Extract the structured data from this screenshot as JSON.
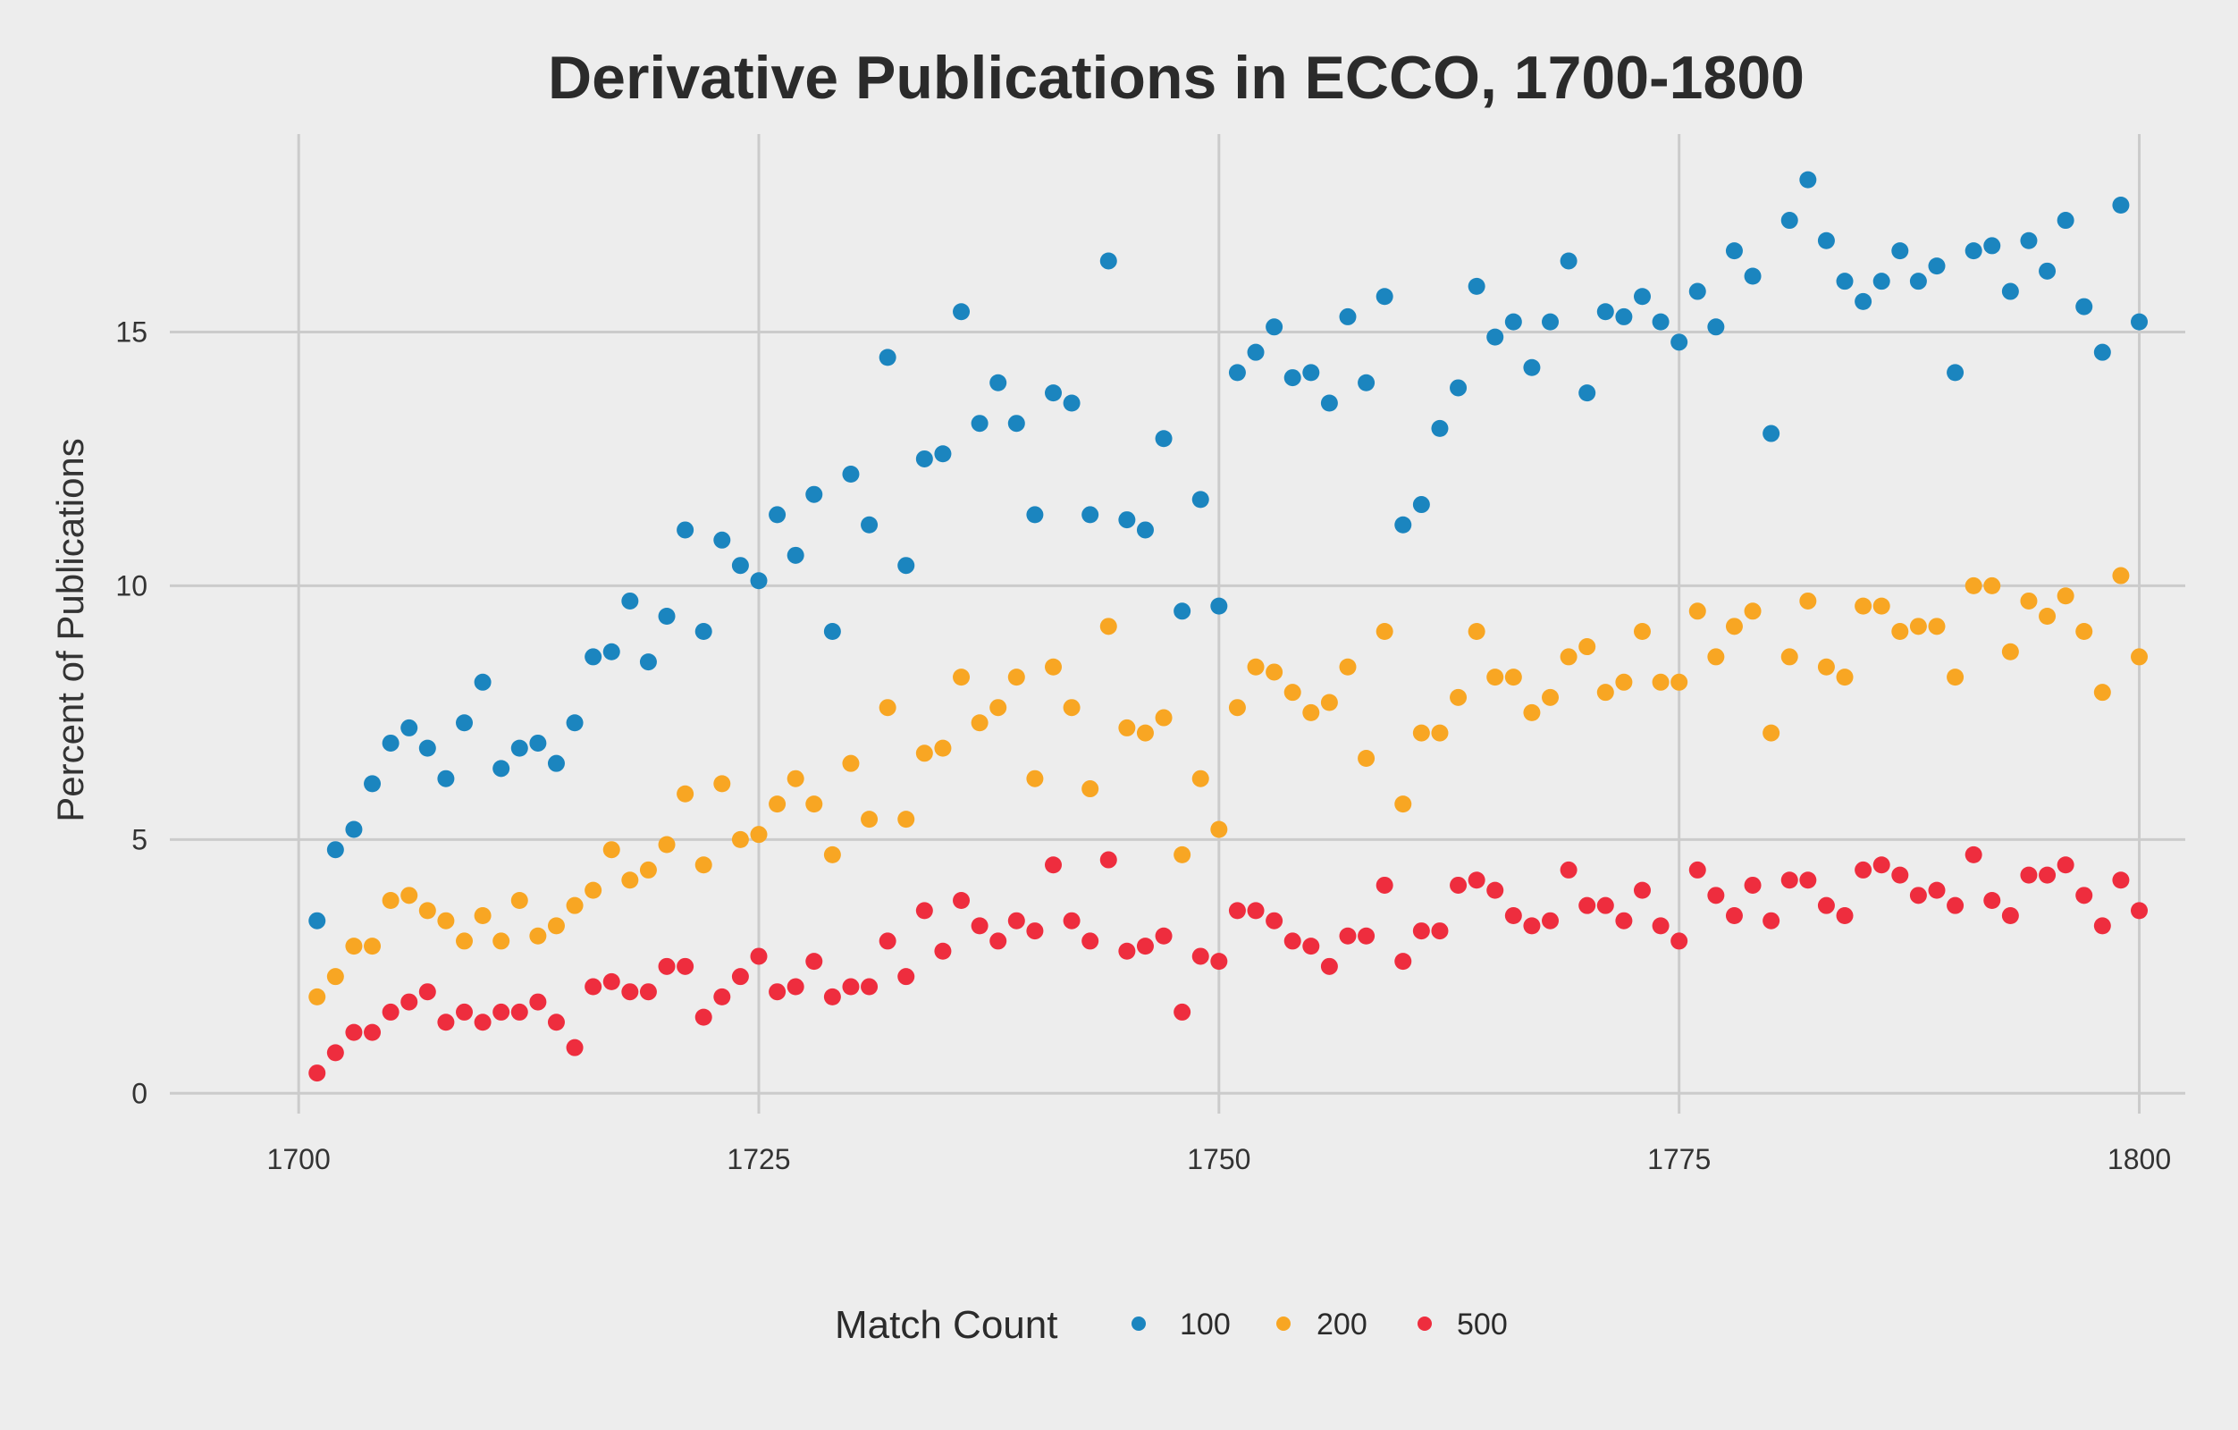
{
  "chart_data": {
    "type": "scatter",
    "title": "Derivative Publications in ECCO, 1700-1800",
    "xlabel": "",
    "ylabel": "Percent of Publications",
    "xlim": [
      1693,
      1802.5
    ],
    "ylim": [
      -0.4,
      18.9
    ],
    "x_ticks": [
      1700,
      1725,
      1750,
      1775,
      1800
    ],
    "y_ticks": [
      0,
      5,
      10,
      15
    ],
    "grid": true,
    "legend": {
      "title": "Match Count",
      "position": "bottom"
    },
    "colors": {
      "100": "#1b85bf",
      "200": "#f8a623",
      "500": "#ee2d3e",
      "background": "#ededed",
      "grid": "#cbcbcb"
    },
    "x": [
      1701,
      1702,
      1703,
      1704,
      1705,
      1706,
      1707,
      1708,
      1709,
      1710,
      1711,
      1712,
      1713,
      1714,
      1715,
      1716,
      1717,
      1718,
      1719,
      1720,
      1721,
      1722,
      1723,
      1724,
      1725,
      1726,
      1727,
      1728,
      1729,
      1730,
      1731,
      1732,
      1733,
      1734,
      1735,
      1736,
      1737,
      1738,
      1739,
      1740,
      1741,
      1742,
      1743,
      1744,
      1745,
      1746,
      1747,
      1748,
      1749,
      1750,
      1751,
      1752,
      1753,
      1754,
      1755,
      1756,
      1757,
      1758,
      1759,
      1760,
      1761,
      1762,
      1763,
      1764,
      1765,
      1766,
      1767,
      1768,
      1769,
      1770,
      1771,
      1772,
      1773,
      1774,
      1775,
      1776,
      1777,
      1778,
      1779,
      1780,
      1781,
      1782,
      1783,
      1784,
      1785,
      1786,
      1787,
      1788,
      1789,
      1790,
      1791,
      1792,
      1793,
      1794,
      1795,
      1796,
      1797,
      1798,
      1799,
      1800
    ],
    "series": [
      {
        "name": "100",
        "color": "#1b85bf",
        "values": [
          3.4,
          4.8,
          5.2,
          6.1,
          6.9,
          7.2,
          6.8,
          6.2,
          7.3,
          8.1,
          6.4,
          6.8,
          6.9,
          6.5,
          7.3,
          8.6,
          8.7,
          9.7,
          8.5,
          9.4,
          11.1,
          9.1,
          10.9,
          10.4,
          10.1,
          11.4,
          10.6,
          11.8,
          9.1,
          12.2,
          11.2,
          14.5,
          10.4,
          12.5,
          12.6,
          15.4,
          13.2,
          14.0,
          13.2,
          11.4,
          13.8,
          13.6,
          11.4,
          16.4,
          11.3,
          11.1,
          12.9,
          9.5,
          11.7,
          9.6,
          14.2,
          14.6,
          15.1,
          14.1,
          14.2,
          13.6,
          15.3,
          14.0,
          15.7,
          11.2,
          11.6,
          13.1,
          13.9,
          15.9,
          14.9,
          15.2,
          14.3,
          15.2,
          16.4,
          13.8,
          15.4,
          15.3,
          15.7,
          15.2,
          14.8,
          15.8,
          15.1,
          16.6,
          16.1,
          13.0,
          17.2,
          18.0,
          16.8,
          16.0,
          15.6,
          16.0,
          16.6,
          16.0,
          16.3,
          14.2,
          16.6,
          16.7,
          15.8,
          16.8,
          16.2,
          17.2,
          15.5,
          14.6,
          17.5,
          15.2
        ]
      },
      {
        "name": "200",
        "color": "#f8a623",
        "values": [
          1.9,
          2.3,
          2.9,
          2.9,
          3.8,
          3.9,
          3.6,
          3.4,
          3.0,
          3.5,
          3.0,
          3.8,
          3.1,
          3.3,
          3.7,
          4.0,
          4.8,
          4.2,
          4.4,
          4.9,
          5.9,
          4.5,
          6.1,
          5.0,
          5.1,
          5.7,
          6.2,
          5.7,
          4.7,
          6.5,
          5.4,
          7.6,
          5.4,
          6.7,
          6.8,
          8.2,
          7.3,
          7.6,
          8.2,
          6.2,
          8.4,
          7.6,
          6.0,
          9.2,
          7.2,
          7.1,
          7.4,
          4.7,
          6.2,
          5.2,
          7.6,
          8.4,
          8.3,
          7.9,
          7.5,
          7.7,
          8.4,
          6.6,
          9.1,
          5.7,
          7.1,
          7.1,
          7.8,
          9.1,
          8.2,
          8.2,
          7.5,
          7.8,
          8.6,
          8.8,
          7.9,
          8.1,
          9.1,
          8.1,
          8.1,
          9.5,
          8.6,
          9.2,
          9.5,
          7.1,
          8.6,
          9.7,
          8.4,
          8.2,
          9.6,
          9.6,
          9.1,
          9.2,
          9.2,
          8.2,
          10.0,
          10.0,
          8.7,
          9.7,
          9.4,
          9.8,
          9.1,
          7.9,
          10.2,
          8.6
        ]
      },
      {
        "name": "500",
        "color": "#ee2d3e",
        "values": [
          0.4,
          0.8,
          1.2,
          1.2,
          1.6,
          1.8,
          2.0,
          1.4,
          1.6,
          1.4,
          1.6,
          1.6,
          1.8,
          1.4,
          0.9,
          2.1,
          2.2,
          2.0,
          2.0,
          2.5,
          2.5,
          1.5,
          1.9,
          2.3,
          2.7,
          2.0,
          2.1,
          2.6,
          1.9,
          2.1,
          2.1,
          3.0,
          2.3,
          3.6,
          2.8,
          3.8,
          3.3,
          3.0,
          3.4,
          3.2,
          4.5,
          3.4,
          3.0,
          4.6,
          2.8,
          2.9,
          3.1,
          1.6,
          2.7,
          2.6,
          3.6,
          3.6,
          3.4,
          3.0,
          2.9,
          2.5,
          3.1,
          3.1,
          4.1,
          2.6,
          3.2,
          3.2,
          4.1,
          4.2,
          4.0,
          3.5,
          3.3,
          3.4,
          4.4,
          3.7,
          3.7,
          3.4,
          4.0,
          3.3,
          3.0,
          4.4,
          3.9,
          3.5,
          4.1,
          3.4,
          4.2,
          4.2,
          3.7,
          3.5,
          4.4,
          4.5,
          4.3,
          3.9,
          4.0,
          3.7,
          4.7,
          3.8,
          3.5,
          4.3,
          4.3,
          4.5,
          3.9,
          3.3,
          4.2,
          3.6
        ]
      }
    ]
  }
}
